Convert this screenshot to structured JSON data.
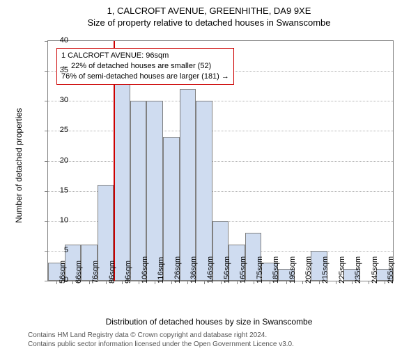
{
  "title_main": "1, CALCROFT AVENUE, GREENHITHE, DA9 9XE",
  "title_sub": "Size of property relative to detached houses in Swanscombe",
  "y_axis": {
    "label": "Number of detached properties",
    "min": 0,
    "max": 40,
    "step": 5
  },
  "x_axis": {
    "label": "Distribution of detached houses by size in Swanscombe",
    "categories": [
      "56sqm",
      "66sqm",
      "76sqm",
      "86sqm",
      "96sqm",
      "106sqm",
      "116sqm",
      "126sqm",
      "136sqm",
      "146sqm",
      "156sqm",
      "165sqm",
      "175sqm",
      "185sqm",
      "195sqm",
      "205sqm",
      "215sqm",
      "225sqm",
      "235sqm",
      "245sqm",
      "255sqm"
    ]
  },
  "bars": {
    "values": [
      3,
      6,
      6,
      16,
      35,
      30,
      30,
      24,
      32,
      30,
      10,
      6,
      8,
      3,
      2,
      0,
      5,
      0,
      2,
      0,
      2
    ],
    "fill_color": "#cfdcf0",
    "border_color": "#808080"
  },
  "marker": {
    "position_index": 4,
    "color": "#cc0000"
  },
  "annotation": {
    "line1": "1 CALCROFT AVENUE: 96sqm",
    "line2": "← 22% of detached houses are smaller (52)",
    "line3": "76% of semi-detached houses are larger (181) →",
    "border_color": "#cc0000",
    "background_color": "#ffffff",
    "fontsize": 11
  },
  "footer": {
    "line1": "Contains HM Land Registry data © Crown copyright and database right 2024.",
    "line2": "Contains public sector information licensed under the Open Government Licence v3.0."
  },
  "style": {
    "background_color": "#ffffff",
    "grid_color": "#b0b0b0",
    "axis_color": "#808080",
    "title_fontsize": 13,
    "label_fontsize": 12,
    "tick_fontsize": 11
  }
}
